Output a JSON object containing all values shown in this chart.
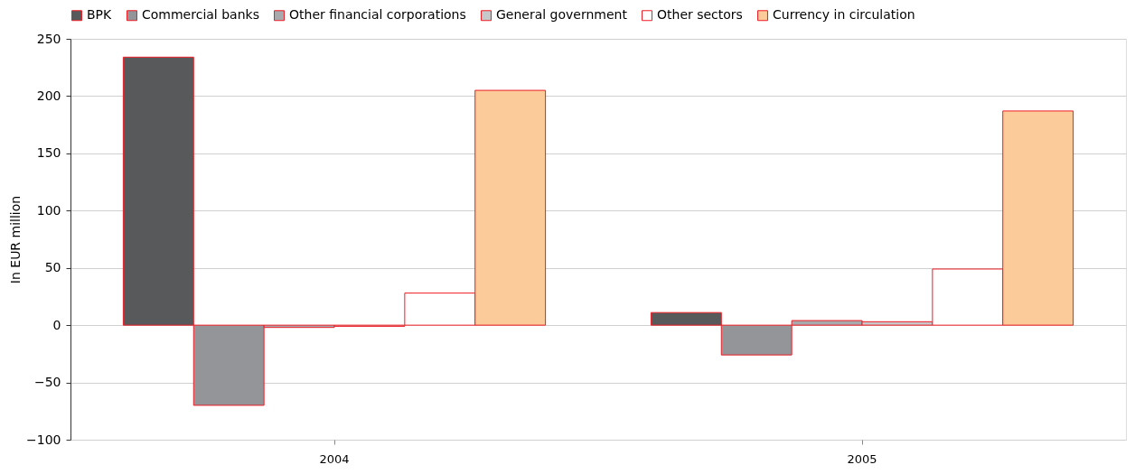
{
  "chart_data": {
    "type": "bar",
    "ylabel": "In EUR million",
    "categories": [
      "2004",
      "2005"
    ],
    "series": [
      {
        "name": "BPK",
        "color": "#58595b",
        "values": [
          234,
          11
        ]
      },
      {
        "name": "Commercial banks",
        "color": "#939598",
        "values": [
          -70,
          -26
        ]
      },
      {
        "name": "Other financial corporations",
        "color": "#a7a9ac",
        "values": [
          -2,
          4
        ]
      },
      {
        "name": "General government",
        "color": "#c7c8ca",
        "values": [
          -1,
          3
        ]
      },
      {
        "name": "Other sectors",
        "color": "#ffffff",
        "values": [
          28,
          49
        ]
      },
      {
        "name": "Currency in circulation",
        "color": "#fbcb9a",
        "values": [
          205,
          187
        ]
      }
    ],
    "ylim": [
      -100,
      250
    ],
    "yticks": [
      -100,
      -50,
      0,
      50,
      100,
      150,
      200,
      250
    ],
    "grid": "y",
    "legend": "top"
  }
}
